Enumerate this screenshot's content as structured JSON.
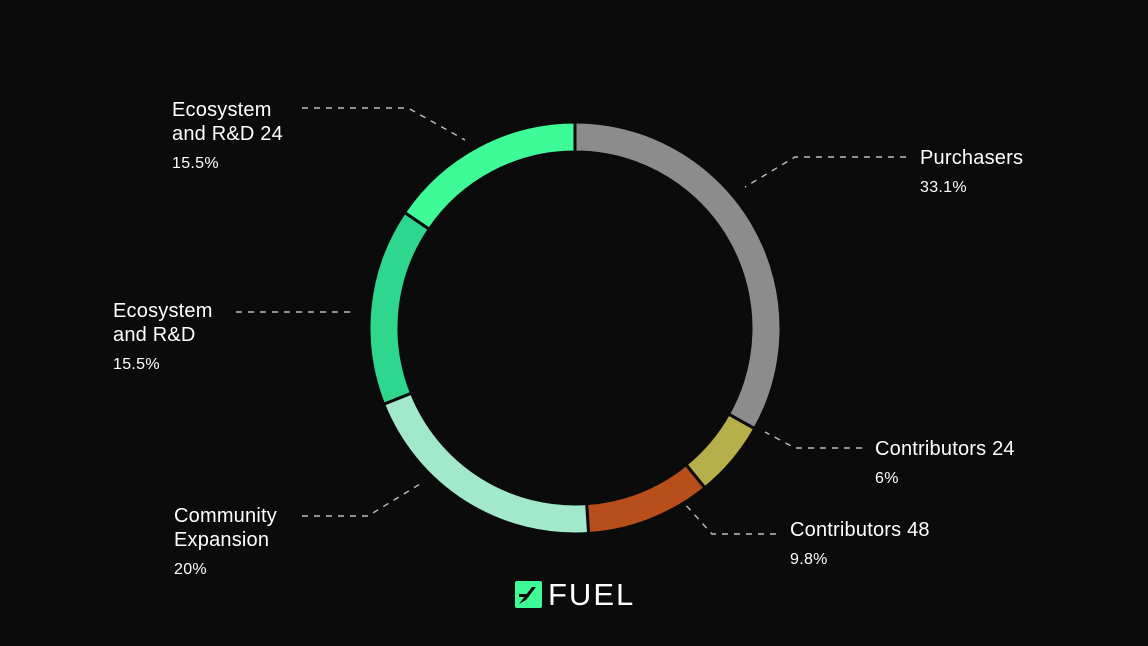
{
  "chart_data": {
    "type": "pie",
    "style": "donut",
    "legend": "none",
    "slices": [
      {
        "id": "purchasers",
        "name": "Purchasers",
        "value": 33.1,
        "pct_label": "33.1%",
        "color": "#8c8c8c"
      },
      {
        "id": "contributors24",
        "name": "Contributors 24",
        "value": 6,
        "pct_label": "6%",
        "color": "#b5b04a"
      },
      {
        "id": "contributors48",
        "name": "Contributors 48",
        "value": 9.8,
        "pct_label": "9.8%",
        "color": "#b84e1a"
      },
      {
        "id": "community",
        "name": "Community Expansion",
        "value": 20,
        "pct_label": "20%",
        "color": "#a2e8cb"
      },
      {
        "id": "ecosystem",
        "name": "Ecosystem and R&D",
        "value": 15.5,
        "pct_label": "15.5%",
        "color": "#2fd68d"
      },
      {
        "id": "ecosystem24",
        "name": "Ecosystem and R&D 24",
        "value": 15.5,
        "pct_label": "15.5%",
        "color": "#3efa97"
      }
    ]
  },
  "labels": {
    "purchasers": {
      "line1": "Purchasers",
      "line2": "",
      "pct": "33.1%"
    },
    "contributors24": {
      "line1": "Contributors 24",
      "line2": "",
      "pct": "6%"
    },
    "contributors48": {
      "line1": "Contributors 48",
      "line2": "",
      "pct": "9.8%"
    },
    "community": {
      "line1": "Community",
      "line2": "Expansion",
      "pct": "20%"
    },
    "ecosystem": {
      "line1": "Ecosystem",
      "line2": "and R&D",
      "pct": "15.5%"
    },
    "ecosystem24": {
      "line1": "Ecosystem",
      "line2": "and R&D 24",
      "pct": "15.5%"
    }
  },
  "brand": {
    "wordmark": "FUEL",
    "accent": "#3efa97"
  }
}
